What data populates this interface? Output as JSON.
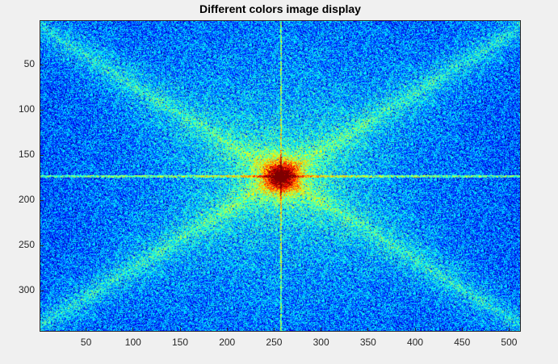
{
  "title": "Different colors image display",
  "chart_data": {
    "type": "heatmap",
    "title": "Different colors image display",
    "xlabel": "",
    "ylabel": "",
    "colormap": "jet",
    "description_kind": "log-magnitude 2D Fourier spectrum, centered",
    "image_size": [
      512,
      345
    ],
    "xlim": [
      0.5,
      512.5
    ],
    "ylim": [
      0.5,
      345.5
    ],
    "y_direction": "reverse",
    "center": [
      257,
      173
    ],
    "grid": false,
    "xticks": [
      50,
      100,
      150,
      200,
      250,
      300,
      350,
      400,
      450,
      500
    ],
    "yticks": [
      50,
      100,
      150,
      200,
      250,
      300
    ],
    "xtick_labels": [
      "50",
      "100",
      "150",
      "200",
      "250",
      "300",
      "350",
      "400",
      "450",
      "500"
    ],
    "ytick_labels": [
      "50",
      "100",
      "150",
      "200",
      "250",
      "300"
    ],
    "colors": {
      "background": "#00c8ff",
      "low": "#0000ff",
      "mid": "#00ffff",
      "high": "#ffff00",
      "peak": "#ff0000"
    }
  }
}
